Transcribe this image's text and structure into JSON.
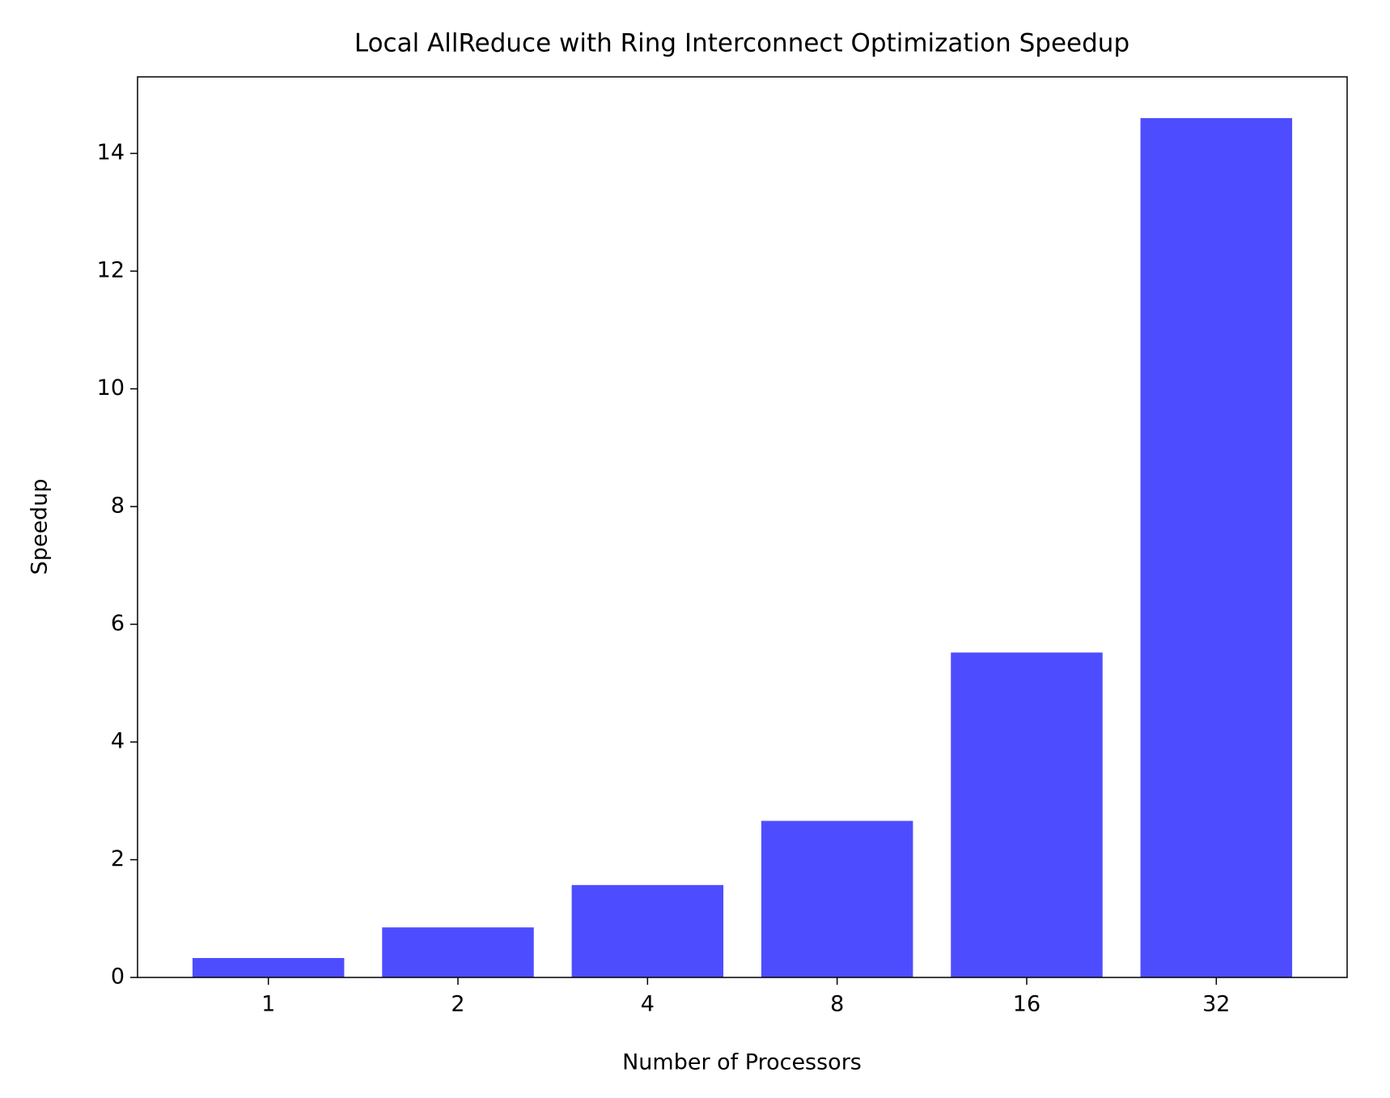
{
  "chart_data": {
    "type": "bar",
    "title": "Local AllReduce with Ring Interconnect Optimization Speedup",
    "x_label": "Number of Processors",
    "y_label": "Speedup",
    "categories": [
      "1",
      "2",
      "4",
      "8",
      "16",
      "32"
    ],
    "values": [
      0.33,
      0.85,
      1.57,
      2.66,
      5.52,
      14.6
    ],
    "color": "#4d4dff",
    "ylim": [
      0,
      15.3
    ],
    "yticks": [
      0,
      2,
      4,
      6,
      8,
      10,
      12,
      14
    ],
    "grid": false
  }
}
